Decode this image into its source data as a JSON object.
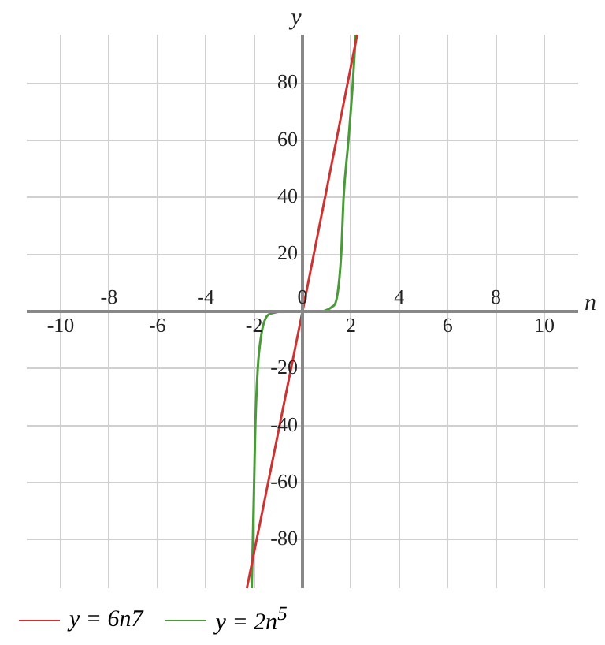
{
  "chart_data": {
    "type": "line",
    "xlabel": "n",
    "ylabel": "y",
    "xlim": [
      -11.4,
      11.4
    ],
    "ylim": [
      -97,
      97
    ],
    "xticks": [
      -10,
      -6,
      -2,
      2,
      6,
      10
    ],
    "x2lim": [
      -11.4,
      11.4
    ],
    "x2ticks": [
      -8,
      -4,
      0,
      4,
      8
    ],
    "yticks": [
      -80,
      -60,
      -40,
      -20,
      {
        "value": 0,
        "label": null
      },
      20,
      40,
      60,
      80
    ],
    "grid": true,
    "legend": "bottom",
    "marker": "none",
    "line_style": "solid",
    "series": [
      {
        "name": "y = 6n7",
        "color": "#cc3333",
        "x": [
          -2.3,
          0,
          2.26
        ],
        "values": [
          -97,
          0,
          97
        ]
      },
      {
        "name": "y = 2n$^{5}$",
        "color": "#4a9a3a",
        "x": [
          -2.1,
          -2.0,
          -1.95,
          -1.85,
          -1.7,
          -1.5,
          -1.2,
          -0.8,
          0,
          0.8,
          1.0,
          1.2,
          1.4,
          1.6,
          1.7,
          1.9,
          2.08,
          2.2
        ],
        "values": [
          -97,
          -60,
          -40,
          -20,
          -8,
          -2,
          -0.5,
          0,
          0,
          0,
          0.5,
          1.5,
          4,
          20,
          40,
          60,
          80,
          97
        ]
      }
    ]
  }
}
